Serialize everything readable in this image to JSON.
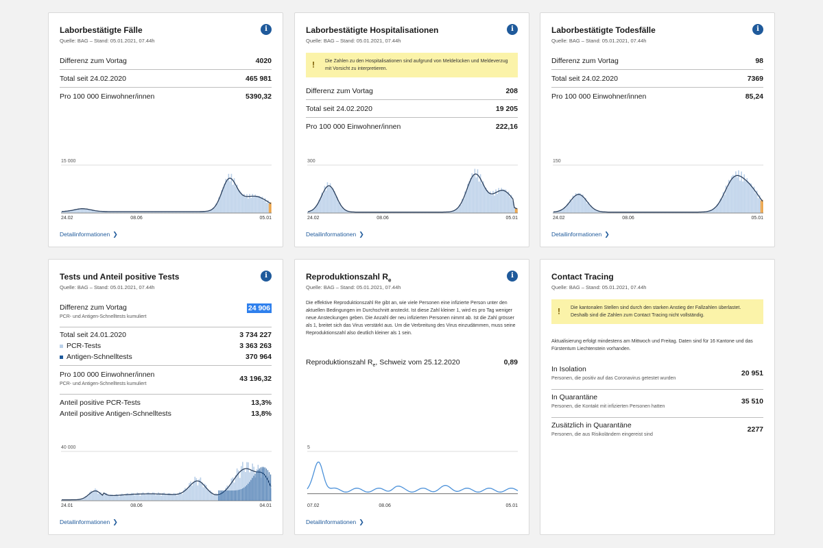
{
  "source_text": "Quelle: BAG – Stand: 05.01.2021, 07.44h",
  "detail_label": "Detailinformationen",
  "cases": {
    "title": "Laborbestätigte Fälle",
    "rows": [
      {
        "label": "Differenz zum Vortag",
        "value": "4020"
      },
      {
        "label": "Total seit 24.02.2020",
        "value": "465 981"
      },
      {
        "label": "Pro 100 000 Einwohner/innen",
        "value": "5390,32"
      }
    ],
    "chart": {
      "ymax_label": "15 000",
      "x_start": "24.02",
      "x_mid": "08.06",
      "x_end": "05.01"
    }
  },
  "hosp": {
    "title": "Laborbestätigte Hospitalisationen",
    "warning": "Die Zahlen zu den Hospitalisationen sind aufgrund von Meldelücken und Meldeverzug mit Vorsicht zu interpretieren.",
    "rows": [
      {
        "label": "Differenz zum Vortag",
        "value": "208"
      },
      {
        "label": "Total seit 24.02.2020",
        "value": "19 205"
      },
      {
        "label": "Pro 100 000 Einwohner/innen",
        "value": "222,16"
      }
    ],
    "chart": {
      "ymax_label": "300",
      "x_start": "24.02",
      "x_mid": "08.06",
      "x_end": "05.01"
    }
  },
  "deaths": {
    "title": "Laborbestätigte Todesfälle",
    "rows": [
      {
        "label": "Differenz zum Vortag",
        "value": "98"
      },
      {
        "label": "Total seit 24.02.2020",
        "value": "7369"
      },
      {
        "label": "Pro 100 000 Einwohner/innen",
        "value": "85,24"
      }
    ],
    "chart": {
      "ymax_label": "150",
      "x_start": "24.02",
      "x_mid": "08.06",
      "x_end": "05.01"
    }
  },
  "tests": {
    "title": "Tests und Anteil positive Tests",
    "diff_label": "Differenz zum Vortag",
    "diff_sub": "PCR- und Antigen-Schnelltests kumuliert",
    "diff_value": "24 906",
    "total_label": "Total seit 24.01.2020",
    "total_value": "3 734 227",
    "pcr_label": "PCR-Tests",
    "pcr_value": "3 363 263",
    "antigen_label": "Antigen-Schnelltests",
    "antigen_value": "370 964",
    "per100k_label": "Pro 100 000 Einwohner/innen",
    "per100k_sub": "PCR- und Antigen-Schnelltests kumuliert",
    "per100k_value": "43 196,32",
    "pos_pcr_label": "Anteil positive PCR-Tests",
    "pos_pcr_value": "13,3%",
    "pos_ag_label": "Anteil positive Antigen-Schnelltests",
    "pos_ag_value": "13,8%",
    "colors": {
      "pcr": "#b9cfe8",
      "antigen": "#1f5a9b"
    },
    "chart": {
      "ymax_label": "40 000",
      "x_start": "24.01",
      "x_mid": "08.06",
      "x_end": "04.01"
    }
  },
  "repro": {
    "title": "Reproduktionszahl R",
    "title_sub": "e",
    "description": "Die effektive Reproduktionszahl Re gibt an, wie viele Personen eine infizierte Person unter den aktuellen Bedingungen im Durchschnitt ansteckt. Ist diese Zahl kleiner 1, wird es pro Tag weniger neue Ansteckungen geben. Die Anzahl der neu infizierten Personen nimmt ab. Ist die Zahl grösser als 1, breitet sich das Virus verstärkt aus. Um die Verbreitung des Virus einzudämmen, muss seine Reproduktionszahl also deutlich kleiner als 1 sein.",
    "value_label_pre": "Reproduktionszahl R",
    "value_label_sub": "e",
    "value_label_post": ", Schweiz vom 25.12.2020",
    "value": "0,89",
    "chart": {
      "ymax_label": "5",
      "x_start": "07.02",
      "x_mid": "08.06",
      "x_end": "05.01"
    }
  },
  "tracing": {
    "title": "Contact Tracing",
    "warning": "Die kantonalen Stellen sind durch den starken Anstieg der Fallzahlen überlastet. Deshalb sind die Zahlen zum Contact Tracing nicht vollständig.",
    "update_text": "Aktualisierung erfolgt mindestens am Mittwoch und Freitag. Daten sind für 16 Kantone und das Fürstentum Liechtenstein vorhanden.",
    "rows": [
      {
        "label": "In Isolation",
        "sub": "Personen, die positiv auf das Coronavirus getestet wurden",
        "value": "20 951"
      },
      {
        "label": "In Quarantäne",
        "sub": "Personen, die Kontakt mit infizierten Personen hatten",
        "value": "35 510"
      },
      {
        "label": "Zusätzlich in Quarantäne",
        "sub": "Personen, die aus Risikoländern eingereist sind",
        "value": "2277"
      }
    ]
  },
  "colors": {
    "bar": "#b9cfe8",
    "line": "#2b3f5c",
    "accent": "#1f5a9b",
    "recent": "#e8962e",
    "repro_line": "#4a90d9"
  }
}
